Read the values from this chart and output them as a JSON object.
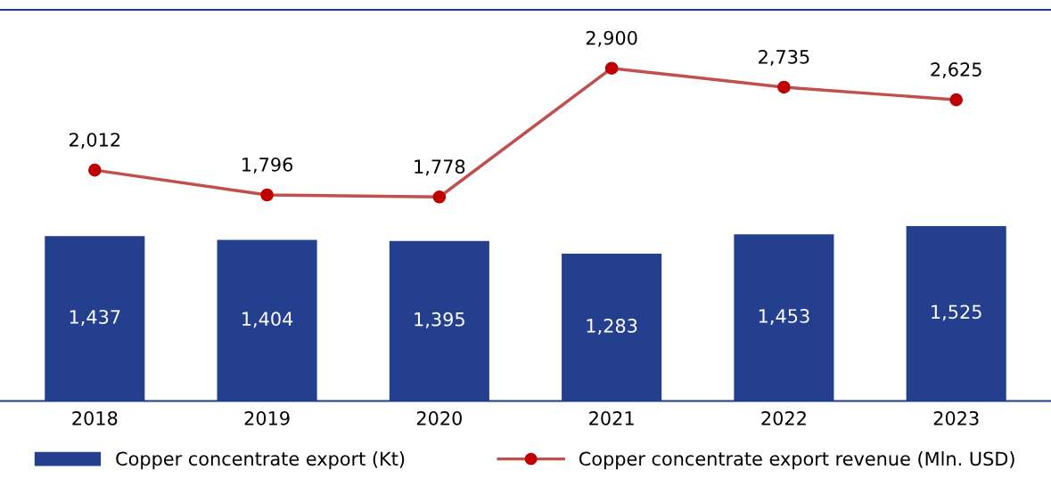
{
  "chart_data": {
    "type": "bar",
    "categories": [
      "2018",
      "2019",
      "2020",
      "2021",
      "2022",
      "2023"
    ],
    "series": [
      {
        "name": "Copper concentrate export (Kt)",
        "color": "#253f8f",
        "values": [
          1437,
          1404,
          1395,
          1283,
          1453,
          1525
        ],
        "value_labels": [
          "1,437",
          "1,404",
          "1,395",
          "1,283",
          "1,453",
          "1,525"
        ]
      },
      {
        "name": "Copper concentrate export revenue (Mln. USD)",
        "type": "line",
        "color": "#c0504d",
        "marker": "circle",
        "values": [
          2012,
          1796,
          1778,
          2900,
          2735,
          2625
        ],
        "value_labels": [
          "2,012",
          "1,796",
          "1,778",
          "2,900",
          "2,735",
          "2,625"
        ]
      }
    ],
    "tick_labels": "x",
    "grid": false,
    "legend": "bottom"
  }
}
